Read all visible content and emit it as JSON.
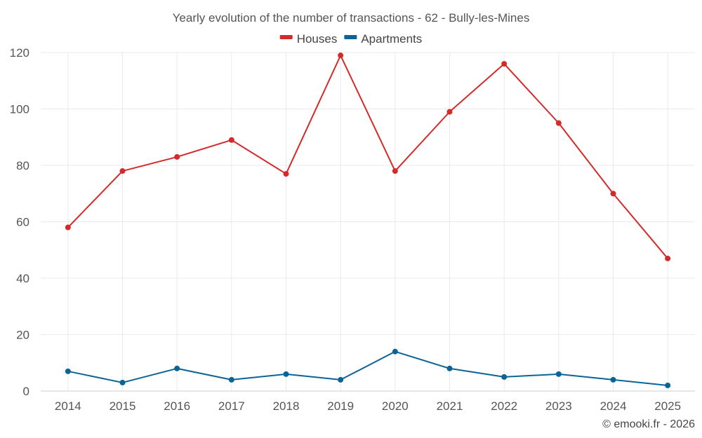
{
  "chart_data": {
    "type": "line",
    "title": "Yearly evolution of the number of transactions - 62 - Bully-les-Mines",
    "x": [
      "2014",
      "2015",
      "2016",
      "2017",
      "2018",
      "2019",
      "2020",
      "2021",
      "2022",
      "2023",
      "2024",
      "2025"
    ],
    "series": [
      {
        "name": "Houses",
        "color": "#d42a2a",
        "values": [
          58,
          78,
          83,
          89,
          77,
          119,
          78,
          99,
          116,
          95,
          70,
          47
        ]
      },
      {
        "name": "Apartments",
        "color": "#0b6496",
        "values": [
          7,
          3,
          8,
          4,
          6,
          4,
          14,
          8,
          5,
          6,
          4,
          2
        ]
      }
    ],
    "yticks": [
      0,
      20,
      40,
      60,
      80,
      100,
      120
    ],
    "ylim": [
      0,
      120
    ],
    "xlabel": "",
    "ylabel": "",
    "grid": true,
    "legend": "top-center"
  },
  "credit": "© emooki.fr - 2026"
}
